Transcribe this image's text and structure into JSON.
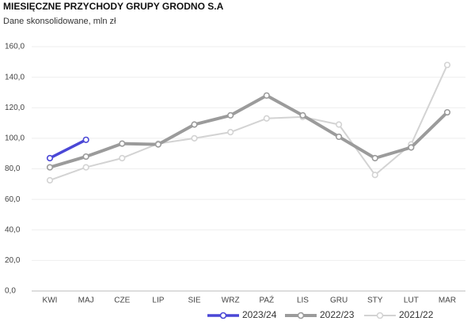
{
  "chart_data": {
    "type": "line",
    "title": "MIESIĘCZNE PRZYCHODY GRUPY GRODNO S.A",
    "subtitle": "Dane skonsolidowane, mln zł",
    "categories": [
      "KWI",
      "MAJ",
      "CZE",
      "LIP",
      "SIE",
      "WRZ",
      "PAŹ",
      "LIS",
      "GRU",
      "STY",
      "LUT",
      "MAR"
    ],
    "series": [
      {
        "name": "2023/24",
        "color": "#4a47d6",
        "values": [
          87,
          99,
          null,
          null,
          null,
          null,
          null,
          null,
          null,
          null,
          null,
          null
        ]
      },
      {
        "name": "2022/23",
        "color": "#9b9b9b",
        "values": [
          81,
          88,
          96.5,
          96,
          109,
          115,
          128,
          115,
          101,
          87,
          94,
          117
        ]
      },
      {
        "name": "2021/22",
        "color": "#d3d3d3",
        "values": [
          72.5,
          81,
          87,
          96.5,
          100,
          104,
          113,
          114,
          109,
          76,
          96,
          148
        ]
      }
    ],
    "ylim": [
      0,
      160
    ],
    "yticks": [
      {
        "value": 0,
        "label": "0,0"
      },
      {
        "value": 20,
        "label": "20,0"
      },
      {
        "value": 40,
        "label": "40,0"
      },
      {
        "value": 60,
        "label": "60,0"
      },
      {
        "value": 80,
        "label": "80,0"
      },
      {
        "value": 100,
        "label": "100,0"
      },
      {
        "value": 120,
        "label": "120,0"
      },
      {
        "value": 140,
        "label": "140,0"
      },
      {
        "value": 160,
        "label": "160,0"
      }
    ],
    "grid": true,
    "legend": "bottom"
  }
}
